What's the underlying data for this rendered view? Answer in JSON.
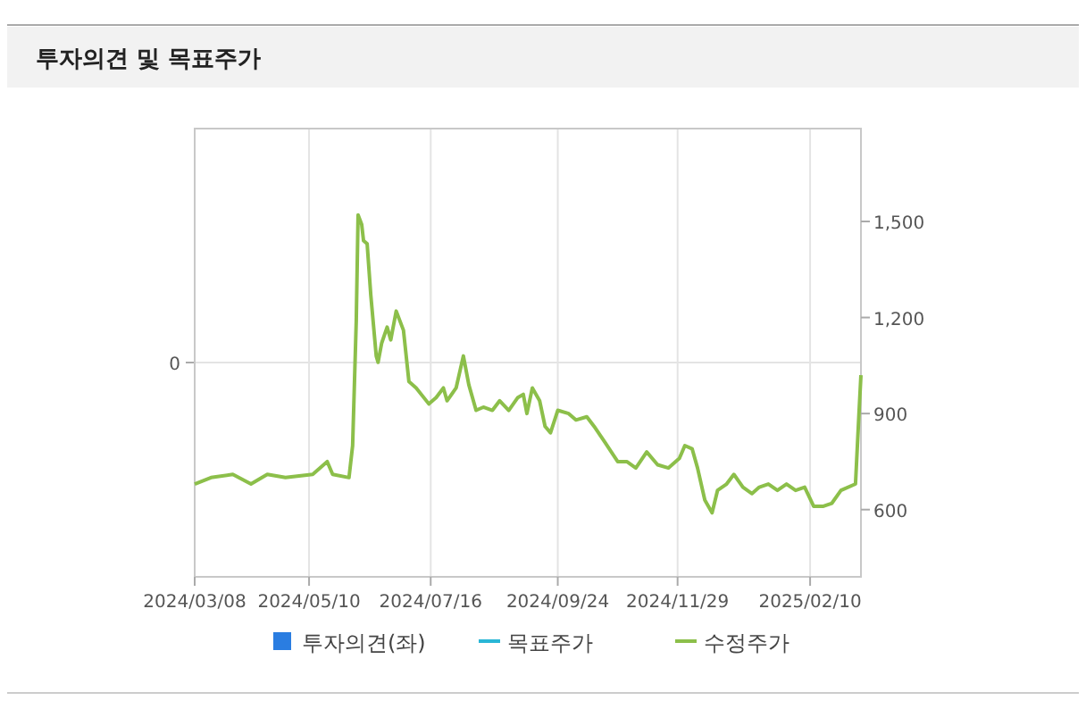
{
  "chart_data": {
    "type": "line",
    "title": "투자의견 및 목표주가",
    "xlim": [
      "2024-03-08",
      "2025-03-10"
    ],
    "xticks": [
      {
        "value": "2024-03-08",
        "label": "2024/03/08"
      },
      {
        "value": "2024-05-10",
        "label": "2024/05/10"
      },
      {
        "value": "2024-07-16",
        "label": "2024/07/16"
      },
      {
        "value": "2024-09-24",
        "label": "2024/09/24"
      },
      {
        "value": "2024-11-29",
        "label": "2024/11/29"
      },
      {
        "value": "2025-02-10",
        "label": "2025/02/10"
      }
    ],
    "annotations": [
      "0"
    ],
    "y2lim": [
      390,
      1790
    ],
    "y2ticks": [
      {
        "value": 600,
        "label": "600"
      },
      {
        "value": 900,
        "label": "900"
      },
      {
        "value": 1200,
        "label": "1,200"
      },
      {
        "value": 1500,
        "label": "1,500"
      }
    ],
    "grid": true,
    "legend": "bottom",
    "marker": "none",
    "line_style": "solid",
    "series": [
      {
        "name": "투자의견(좌)",
        "type": "bar",
        "color": "#2a7de1"
      },
      {
        "name": "목표주가",
        "color": "#29b6d6"
      },
      {
        "name": "수정주가",
        "axis": "y2",
        "color": "#8cbf4a",
        "x": [
          "2024-03-08",
          "2024-03-17",
          "2024-03-29",
          "2024-04-08",
          "2024-04-17",
          "2024-04-27",
          "2024-05-12",
          "2024-05-20",
          "2024-05-23",
          "2024-06-01",
          "2024-06-03",
          "2024-06-05",
          "2024-06-06",
          "2024-06-08",
          "2024-06-09",
          "2024-06-11",
          "2024-06-13",
          "2024-06-16",
          "2024-06-17",
          "2024-06-19",
          "2024-06-22",
          "2024-06-24",
          "2024-06-27",
          "2024-07-01",
          "2024-07-04",
          "2024-07-08",
          "2024-07-15",
          "2024-07-19",
          "2024-07-23",
          "2024-07-25",
          "2024-07-30",
          "2024-08-03",
          "2024-08-06",
          "2024-08-10",
          "2024-08-14",
          "2024-08-19",
          "2024-08-23",
          "2024-08-28",
          "2024-09-02",
          "2024-09-05",
          "2024-09-07",
          "2024-09-10",
          "2024-09-14",
          "2024-09-17",
          "2024-09-20",
          "2024-09-24",
          "2024-09-30",
          "2024-10-04",
          "2024-10-10",
          "2024-10-14",
          "2024-10-20",
          "2024-10-27",
          "2024-11-01",
          "2024-11-06",
          "2024-11-12",
          "2024-11-18",
          "2024-11-24",
          "2024-11-30",
          "2024-12-03",
          "2024-12-07",
          "2024-12-10",
          "2024-12-14",
          "2024-12-18",
          "2024-12-21",
          "2024-12-26",
          "2024-12-30",
          "2025-01-04",
          "2025-01-09",
          "2025-01-13",
          "2025-01-18",
          "2025-01-23",
          "2025-01-28",
          "2025-02-02",
          "2025-02-07",
          "2025-02-12",
          "2025-02-17",
          "2025-02-22",
          "2025-02-27",
          "2025-03-07",
          "2025-03-09",
          "2025-03-10"
        ],
        "values": [
          680,
          700,
          710,
          680,
          710,
          700,
          710,
          750,
          710,
          700,
          800,
          1190,
          1520,
          1490,
          1440,
          1430,
          1270,
          1080,
          1060,
          1120,
          1170,
          1130,
          1220,
          1160,
          1000,
          980,
          930,
          950,
          980,
          940,
          980,
          1080,
          990,
          910,
          920,
          910,
          940,
          910,
          950,
          960,
          900,
          980,
          940,
          860,
          840,
          910,
          900,
          880,
          890,
          860,
          810,
          750,
          750,
          730,
          780,
          740,
          730,
          760,
          800,
          790,
          730,
          630,
          590,
          660,
          680,
          710,
          670,
          650,
          670,
          680,
          660,
          680,
          660,
          670,
          610,
          610,
          620,
          660,
          680,
          910,
          1020
        ]
      }
    ]
  }
}
